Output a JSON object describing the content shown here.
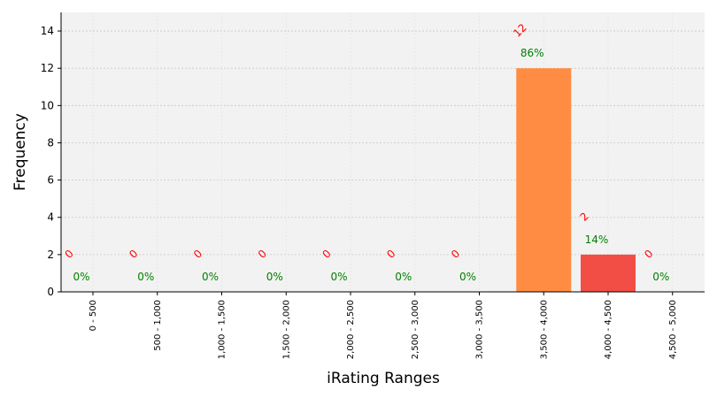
{
  "chart_data": {
    "type": "bar",
    "xlabel": "iRating Ranges",
    "ylabel": "Frequency",
    "categories": [
      "0 - 500",
      "500 - 1,000",
      "1,000 - 1,500",
      "1,500 - 2,000",
      "2,000 - 2,500",
      "2,500 - 3,000",
      "3,000 - 3,500",
      "3,500 - 4,000",
      "4,000 - 4,500",
      "4,500 - 5,000"
    ],
    "values": [
      0,
      0,
      0,
      0,
      0,
      0,
      0,
      12,
      2,
      0
    ],
    "count_labels": [
      "0",
      "0",
      "0",
      "0",
      "0",
      "0",
      "0",
      "12",
      "2",
      "0"
    ],
    "percent_labels": [
      "0%",
      "0%",
      "0%",
      "0%",
      "0%",
      "0%",
      "0%",
      "86%",
      "14%",
      "0%"
    ],
    "bar_colors": [
      "#ff8c42",
      "#ff8c42",
      "#ff8c42",
      "#ff8c42",
      "#ff8c42",
      "#ff8c42",
      "#ff8c42",
      "#ff8c42",
      "#f24e45",
      "#ff8c42"
    ],
    "ylim": [
      0,
      15
    ],
    "yticks": [
      0,
      2,
      4,
      6,
      8,
      10,
      12,
      14
    ],
    "grid": true,
    "plot_background": "#f2f2f2",
    "count_label_color": "#ff0000",
    "percent_label_color": "#008000"
  }
}
